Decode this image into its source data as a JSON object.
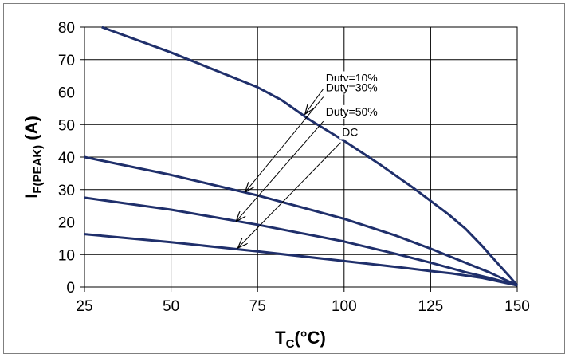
{
  "chart_data": {
    "type": "line",
    "xlabel_main": "T",
    "xlabel_sub": "C",
    "xlabel_rest": "(°C)",
    "ylabel_main": "I",
    "ylabel_sub": "F(PEAK)",
    "ylabel_rest": " (A)",
    "xlim": [
      25,
      150
    ],
    "ylim": [
      0,
      80
    ],
    "xticks": [
      25,
      50,
      75,
      100,
      125,
      150
    ],
    "yticks": [
      0,
      10,
      20,
      30,
      40,
      50,
      60,
      70,
      80
    ],
    "grid": true,
    "line_color": "#1f2f6b",
    "series": [
      {
        "name": "Duty=10%",
        "points": [
          [
            30,
            80
          ],
          [
            50,
            72.2
          ],
          [
            75,
            61.5
          ],
          [
            82,
            57.5
          ],
          [
            90,
            51.5
          ],
          [
            100,
            45
          ],
          [
            110,
            38
          ],
          [
            120,
            30.5
          ],
          [
            130,
            22.5
          ],
          [
            135,
            18
          ],
          [
            140,
            12.5
          ],
          [
            145,
            6.5
          ],
          [
            148,
            3
          ],
          [
            150,
            0.5
          ]
        ]
      },
      {
        "name": "Duty=30%",
        "points": [
          [
            25,
            40
          ],
          [
            50,
            34.5
          ],
          [
            75,
            28.2
          ],
          [
            100,
            21
          ],
          [
            115,
            15.8
          ],
          [
            125,
            11.8
          ],
          [
            135,
            7.5
          ],
          [
            142,
            4.5
          ],
          [
            146,
            2.5
          ],
          [
            150,
            0.5
          ]
        ]
      },
      {
        "name": "Duty=50%",
        "points": [
          [
            25,
            27.5
          ],
          [
            50,
            23.8
          ],
          [
            75,
            19.2
          ],
          [
            100,
            14
          ],
          [
            115,
            10.2
          ],
          [
            125,
            7.5
          ],
          [
            135,
            4.6
          ],
          [
            142,
            2.8
          ],
          [
            150,
            0.5
          ]
        ]
      },
      {
        "name": "DC",
        "points": [
          [
            25,
            16.3
          ],
          [
            50,
            13.8
          ],
          [
            75,
            11
          ],
          [
            100,
            8
          ],
          [
            115,
            6.2
          ],
          [
            125,
            4.9
          ],
          [
            131,
            4.2
          ],
          [
            140,
            2.8
          ],
          [
            150,
            0.5
          ]
        ]
      }
    ],
    "annotations": [
      {
        "label": "Duty=10%",
        "text_at": [
          94.7,
          63.2
        ],
        "arrow_from": [
          94,
          61
        ],
        "arrow_to": [
          88.7,
          53.2
        ]
      },
      {
        "label": "Duty=30%",
        "text_at": [
          94.7,
          60.3
        ],
        "arrow_from": [
          94,
          58.5
        ],
        "arrow_to": [
          71.4,
          29.2
        ]
      },
      {
        "label": "Duty=50%",
        "text_at": [
          94.7,
          52.8
        ],
        "arrow_from": [
          94,
          51
        ],
        "arrow_to": [
          68.8,
          20.2
        ]
      },
      {
        "label": "DC",
        "text_at": [
          99.4,
          46.5
        ],
        "arrow_from": [
          99,
          44.5
        ],
        "arrow_to": [
          69.3,
          12
        ]
      }
    ]
  }
}
